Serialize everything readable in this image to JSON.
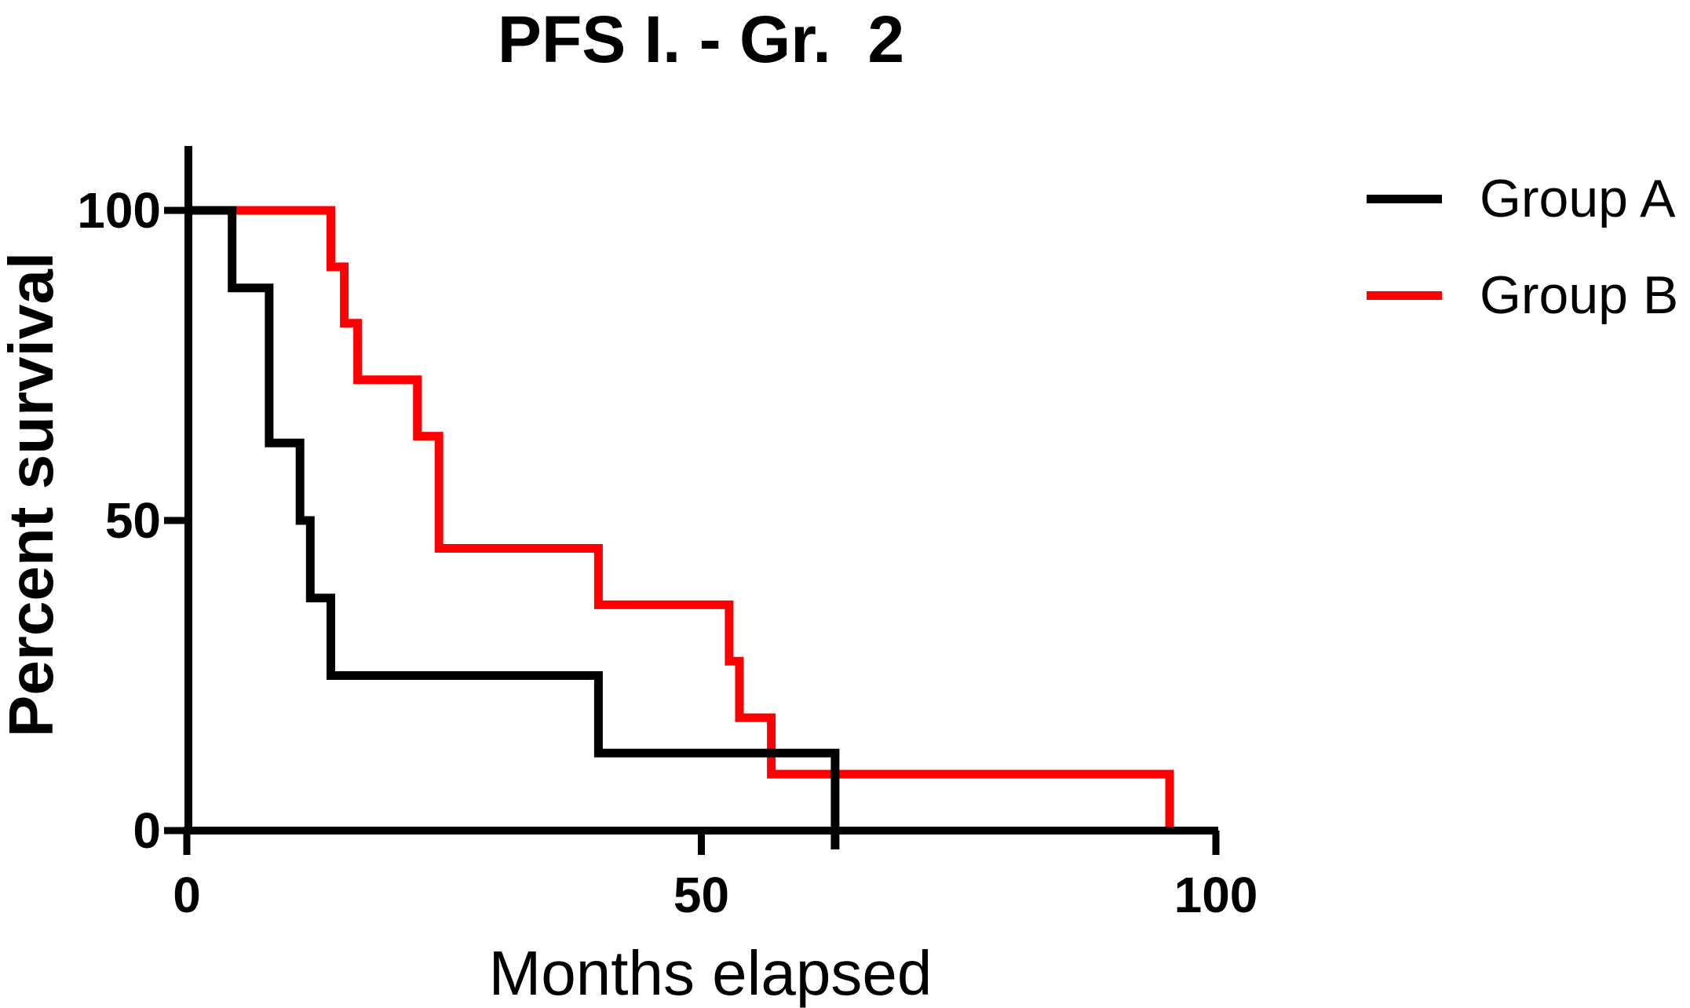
{
  "chart": {
    "title": "PFS I. - Gr.  2",
    "x_axis": {
      "label": "Months elapsed"
    },
    "y_axis": {
      "label": "Percent survival"
    }
  },
  "legend": {
    "position": "top-right",
    "items": [
      {
        "label": "Group A",
        "color": "#000000"
      },
      {
        "label": "Group B",
        "color": "#ff0000"
      }
    ]
  },
  "chart_data": {
    "type": "line",
    "subtype": "kaplan-meier-step-survival",
    "title": "PFS I. - Gr.  2",
    "xlabel": "Months elapsed",
    "ylabel": "Percent survival",
    "xlim": [
      0,
      100
    ],
    "ylim": [
      0,
      100
    ],
    "x_ticks": [
      0,
      50,
      100
    ],
    "y_ticks": [
      0,
      50,
      100
    ],
    "grid": false,
    "legend_position": "top-right",
    "series": [
      {
        "name": "Group A",
        "color": "#000000",
        "points": [
          [
            0,
            100
          ],
          [
            4.4,
            100
          ],
          [
            4.4,
            87.5
          ],
          [
            8,
            87.5
          ],
          [
            8,
            62.5
          ],
          [
            11,
            62.5
          ],
          [
            11,
            50
          ],
          [
            12,
            50
          ],
          [
            12,
            37.5
          ],
          [
            14,
            37.5
          ],
          [
            14,
            25
          ],
          [
            40,
            25
          ],
          [
            40,
            12.5
          ],
          [
            63,
            12.5
          ],
          [
            63,
            0
          ]
        ]
      },
      {
        "name": "Group B",
        "color": "#ff0000",
        "points": [
          [
            0,
            100
          ],
          [
            14,
            100
          ],
          [
            14,
            90.9
          ],
          [
            15.3,
            90.9
          ],
          [
            15.3,
            81.8
          ],
          [
            16.6,
            81.8
          ],
          [
            16.6,
            72.7
          ],
          [
            22.4,
            72.7
          ],
          [
            22.4,
            63.6
          ],
          [
            24.5,
            63.6
          ],
          [
            24.5,
            45.5
          ],
          [
            40,
            45.5
          ],
          [
            40,
            36.4
          ],
          [
            52.7,
            36.4
          ],
          [
            52.7,
            27.3
          ],
          [
            53.7,
            27.3
          ],
          [
            53.7,
            18.2
          ],
          [
            56.8,
            18.2
          ],
          [
            56.8,
            9.1
          ],
          [
            95.5,
            9.1
          ],
          [
            95.5,
            0
          ]
        ]
      }
    ]
  }
}
